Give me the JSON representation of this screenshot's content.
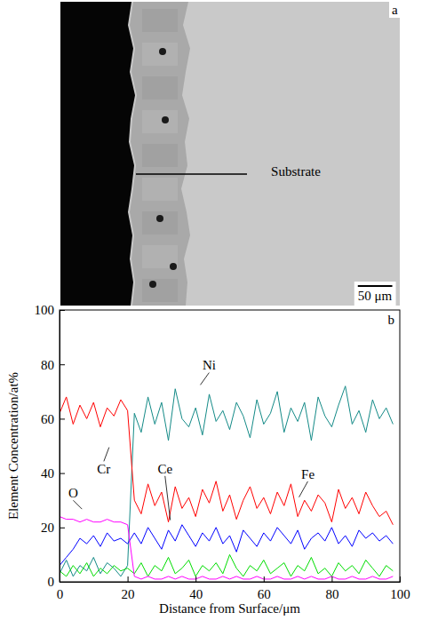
{
  "micrograph": {
    "label": "a",
    "annotation": "Substrate",
    "scale_bar": "50 μm"
  },
  "chart_data": {
    "type": "line",
    "label": "b",
    "x_label": "Distance from Surface/μm",
    "y_label": "Element Concentration/at%",
    "x": [
      0,
      2,
      4,
      6,
      8,
      10,
      12,
      14,
      16,
      18,
      20,
      22,
      24,
      26,
      28,
      30,
      32,
      34,
      36,
      38,
      40,
      42,
      44,
      46,
      48,
      50,
      52,
      54,
      56,
      58,
      60,
      62,
      64,
      66,
      68,
      70,
      72,
      74,
      76,
      78,
      80,
      82,
      84,
      86,
      88,
      90,
      92,
      94,
      96,
      98
    ],
    "series": [
      {
        "name": "Ni",
        "color": "#138a87",
        "values": [
          3,
          8,
          2,
          6,
          4,
          9,
          3,
          7,
          5,
          2,
          6,
          62,
          55,
          68,
          58,
          66,
          52,
          71,
          60,
          57,
          64,
          54,
          69,
          59,
          63,
          56,
          66,
          61,
          53,
          67,
          58,
          62,
          70,
          55,
          64,
          59,
          66,
          52,
          68,
          61,
          57,
          65,
          72,
          58,
          63,
          55,
          67,
          60,
          64,
          58
        ]
      },
      {
        "name": "Cr",
        "color": "#ff0000",
        "values": [
          62,
          68,
          58,
          65,
          60,
          66,
          57,
          64,
          61,
          67,
          63,
          30,
          25,
          36,
          28,
          33,
          22,
          35,
          27,
          31,
          24,
          34,
          29,
          37,
          26,
          32,
          23,
          30,
          35,
          27,
          31,
          25,
          33,
          28,
          36,
          24,
          30,
          26,
          32,
          29,
          22,
          34,
          27,
          31,
          25,
          33,
          28,
          24,
          26,
          21
        ]
      },
      {
        "name": "Fe",
        "color": "#0000ff",
        "values": [
          6,
          9,
          12,
          16,
          14,
          17,
          13,
          18,
          15,
          16,
          14,
          18,
          14,
          20,
          16,
          12,
          19,
          15,
          21,
          17,
          13,
          18,
          15,
          20,
          14,
          17,
          11,
          19,
          16,
          13,
          18,
          15,
          20,
          17,
          14,
          19,
          12,
          16,
          18,
          15,
          20,
          14,
          17,
          13,
          19,
          16,
          18,
          15,
          17,
          14
        ]
      },
      {
        "name": "Ce",
        "color": "#00dd00",
        "values": [
          4,
          2,
          6,
          3,
          7,
          2,
          5,
          3,
          6,
          4,
          5,
          3,
          7,
          2,
          6,
          4,
          9,
          3,
          5,
          8,
          2,
          6,
          4,
          7,
          3,
          10,
          5,
          2,
          6,
          4,
          8,
          3,
          5,
          7,
          2,
          6,
          4,
          9,
          3,
          5,
          2,
          7,
          4,
          6,
          3,
          8,
          5,
          2,
          6,
          4
        ]
      },
      {
        "name": "O",
        "color": "#ff00ff",
        "values": [
          24,
          23,
          23,
          22,
          23,
          22,
          22,
          23,
          22,
          22,
          21,
          2,
          1,
          2,
          1,
          1,
          2,
          1,
          2,
          1,
          1,
          2,
          1,
          1,
          2,
          1,
          2,
          1,
          1,
          2,
          1,
          1,
          2,
          1,
          1,
          2,
          1,
          2,
          1,
          1,
          2,
          1,
          1,
          2,
          1,
          1,
          2,
          1,
          1,
          2
        ]
      }
    ],
    "xlim": [
      0,
      100
    ],
    "xticks": [
      0,
      20,
      40,
      60,
      80,
      100
    ],
    "ylim": [
      0,
      100
    ],
    "yticks": [
      0,
      20,
      40,
      60,
      80,
      100
    ],
    "annotations": [
      {
        "text": "Ni",
        "x": 44,
        "y": 78
      },
      {
        "text": "Cr",
        "x": 13,
        "y": 40
      },
      {
        "text": "O",
        "x": 4,
        "y": 31
      },
      {
        "text": "Ce",
        "x": 31,
        "y": 40
      },
      {
        "text": "Fe",
        "x": 73,
        "y": 38
      }
    ]
  }
}
